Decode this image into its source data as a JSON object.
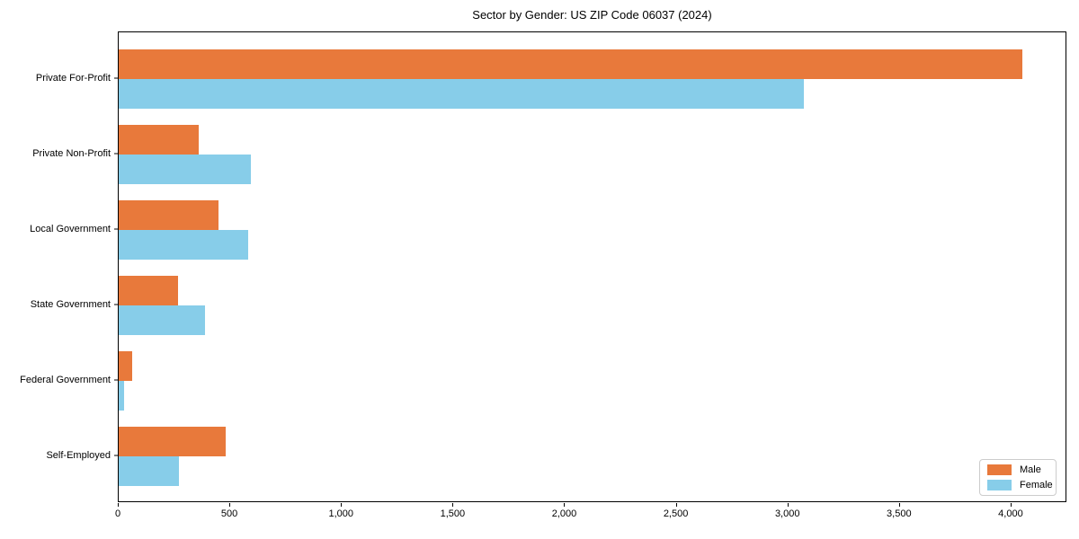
{
  "title": "Sector by Gender: US ZIP Code 06037 (2024)",
  "colors": {
    "male": "#e8793b",
    "female": "#87cde9",
    "spine": "#000000",
    "legend_border": "#cccccc",
    "background": "#ffffff"
  },
  "legend": {
    "position": "lower right",
    "items": [
      {
        "label": "Male",
        "color": "#e8793b"
      },
      {
        "label": "Female",
        "color": "#87cde9"
      }
    ]
  },
  "chart_data": {
    "type": "bar",
    "orientation": "horizontal",
    "title": "Sector by Gender: US ZIP Code 06037 (2024)",
    "categories": [
      "Private For-Profit",
      "Private Non-Profit",
      "Local Government",
      "State Government",
      "Federal Government",
      "Self-Employed"
    ],
    "series": [
      {
        "name": "Male",
        "color": "#e8793b",
        "values": [
          4050,
          360,
          445,
          265,
          60,
          480
        ]
      },
      {
        "name": "Female",
        "color": "#87cde9",
        "values": [
          3070,
          590,
          580,
          385,
          25,
          270
        ]
      }
    ],
    "xlabel": "",
    "ylabel": "",
    "xlim": [
      0,
      4250
    ],
    "x_ticks": [
      0,
      500,
      1000,
      1500,
      2000,
      2500,
      3000,
      3500,
      4000
    ],
    "x_tick_labels": [
      "0",
      "500",
      "1,000",
      "1,500",
      "2,000",
      "2,500",
      "3,000",
      "3,500",
      "4,000"
    ],
    "grid": false,
    "legend_position": "lower right"
  }
}
